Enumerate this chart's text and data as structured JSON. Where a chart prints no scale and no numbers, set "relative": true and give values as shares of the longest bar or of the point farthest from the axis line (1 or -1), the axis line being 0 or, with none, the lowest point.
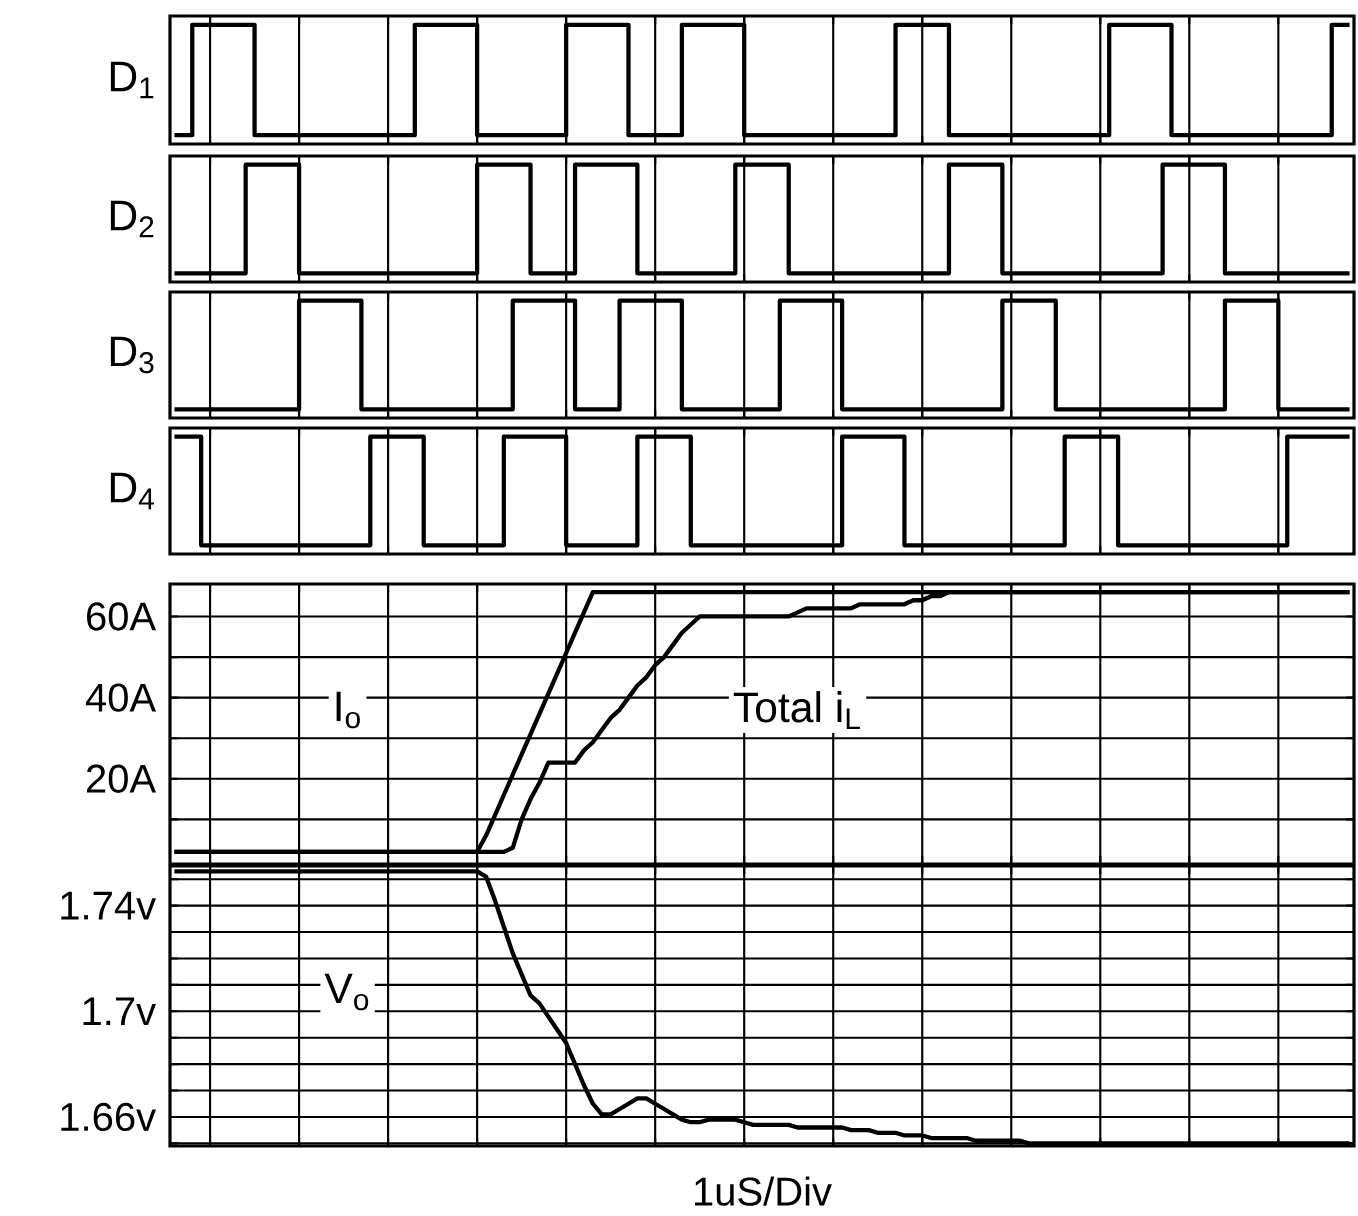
{
  "chart_data": [
    {
      "type": "step",
      "ylabel": "D$_{1}$",
      "relative": true,
      "grid": "x",
      "tick_labels": false,
      "marker": "none",
      "line_style": "solid",
      "categories": [
        null,
        null,
        null,
        null,
        null,
        null,
        null,
        null,
        null,
        null,
        null,
        null,
        null,
        null,
        null,
        null,
        null,
        null,
        null,
        null,
        null,
        null,
        null,
        null,
        null,
        null,
        null,
        null,
        null,
        null,
        null,
        null,
        null,
        null,
        null,
        null,
        null,
        null,
        null,
        null,
        null,
        null,
        null,
        null,
        null,
        null,
        null,
        null,
        null,
        null,
        null,
        null,
        null,
        null,
        null,
        null,
        null,
        null,
        null,
        null,
        null,
        null,
        null,
        null,
        null,
        null,
        null,
        null,
        null,
        null,
        null,
        null,
        null,
        null,
        null,
        null,
        null,
        null,
        null,
        null,
        null,
        null,
        null,
        null,
        null,
        null,
        null,
        null,
        null,
        null,
        null,
        null,
        null,
        null,
        null,
        null,
        null,
        null,
        null,
        null,
        null,
        null,
        null,
        null,
        null,
        null,
        null,
        null,
        null,
        null,
        null,
        null,
        null,
        null,
        null,
        null,
        null,
        null,
        null,
        null,
        null,
        null,
        null,
        null,
        null,
        null,
        null,
        null,
        null,
        null,
        null,
        null,
        null
      ],
      "series": [
        {
          "color": "#000000",
          "values": [
            0,
            0,
            1,
            1,
            1,
            1,
            1,
            1,
            1,
            0,
            0,
            0,
            0,
            0,
            0,
            0,
            0,
            0,
            0,
            0,
            0,
            0,
            0,
            0,
            0,
            0,
            0,
            1,
            1,
            1,
            1,
            1,
            1,
            1,
            0,
            0,
            0,
            0,
            0,
            0,
            0,
            0,
            0,
            0,
            1,
            1,
            1,
            1,
            1,
            1,
            1,
            0,
            0,
            0,
            0,
            0,
            0,
            1,
            1,
            1,
            1,
            1,
            1,
            1,
            0,
            0,
            0,
            0,
            0,
            0,
            0,
            0,
            0,
            0,
            0,
            0,
            0,
            0,
            0,
            0,
            0,
            1,
            1,
            1,
            1,
            1,
            1,
            0,
            0,
            0,
            0,
            0,
            0,
            0,
            0,
            0,
            0,
            0,
            0,
            0,
            0,
            0,
            0,
            0,
            0,
            1,
            1,
            1,
            1,
            1,
            1,
            1,
            0,
            0,
            0,
            0,
            0,
            0,
            0,
            0,
            0,
            0,
            0,
            0,
            0,
            0,
            0,
            0,
            0,
            0,
            1,
            1,
            1
          ]
        }
      ]
    },
    {
      "type": "step",
      "ylabel": "D$_{2}$",
      "relative": true,
      "grid": "x",
      "tick_labels": false,
      "marker": "none",
      "line_style": "solid",
      "categories": [
        null,
        null,
        null,
        null,
        null,
        null,
        null,
        null,
        null,
        null,
        null,
        null,
        null,
        null,
        null,
        null,
        null,
        null,
        null,
        null,
        null,
        null,
        null,
        null,
        null,
        null,
        null,
        null,
        null,
        null,
        null,
        null,
        null,
        null,
        null,
        null,
        null,
        null,
        null,
        null,
        null,
        null,
        null,
        null,
        null,
        null,
        null,
        null,
        null,
        null,
        null,
        null,
        null,
        null,
        null,
        null,
        null,
        null,
        null,
        null,
        null,
        null,
        null,
        null,
        null,
        null,
        null,
        null,
        null,
        null,
        null,
        null,
        null,
        null,
        null,
        null,
        null,
        null,
        null,
        null,
        null,
        null,
        null,
        null,
        null,
        null,
        null,
        null,
        null,
        null,
        null,
        null,
        null,
        null,
        null,
        null,
        null,
        null,
        null,
        null,
        null,
        null,
        null,
        null,
        null,
        null,
        null,
        null,
        null,
        null,
        null,
        null,
        null,
        null,
        null,
        null,
        null,
        null,
        null,
        null,
        null,
        null,
        null,
        null,
        null,
        null,
        null,
        null,
        null,
        null,
        null,
        null,
        null
      ],
      "series": [
        {
          "color": "#000000",
          "values": [
            0,
            0,
            0,
            0,
            0,
            0,
            0,
            0,
            1,
            1,
            1,
            1,
            1,
            1,
            0,
            0,
            0,
            0,
            0,
            0,
            0,
            0,
            0,
            0,
            0,
            0,
            0,
            0,
            0,
            0,
            0,
            0,
            0,
            0,
            1,
            1,
            1,
            1,
            1,
            1,
            0,
            0,
            0,
            0,
            0,
            1,
            1,
            1,
            1,
            1,
            1,
            1,
            0,
            0,
            0,
            0,
            0,
            0,
            0,
            0,
            0,
            0,
            0,
            1,
            1,
            1,
            1,
            1,
            1,
            0,
            0,
            0,
            0,
            0,
            0,
            0,
            0,
            0,
            0,
            0,
            0,
            0,
            0,
            0,
            0,
            0,
            0,
            1,
            1,
            1,
            1,
            1,
            1,
            0,
            0,
            0,
            0,
            0,
            0,
            0,
            0,
            0,
            0,
            0,
            0,
            0,
            0,
            0,
            0,
            0,
            0,
            1,
            1,
            1,
            1,
            1,
            1,
            1,
            0,
            0,
            0,
            0,
            0,
            0,
            0,
            0,
            0,
            0,
            0,
            0,
            0,
            0,
            0
          ]
        }
      ]
    },
    {
      "type": "step",
      "ylabel": "D$_{3}$",
      "relative": true,
      "grid": "x",
      "tick_labels": false,
      "marker": "none",
      "line_style": "solid",
      "categories": [
        null,
        null,
        null,
        null,
        null,
        null,
        null,
        null,
        null,
        null,
        null,
        null,
        null,
        null,
        null,
        null,
        null,
        null,
        null,
        null,
        null,
        null,
        null,
        null,
        null,
        null,
        null,
        null,
        null,
        null,
        null,
        null,
        null,
        null,
        null,
        null,
        null,
        null,
        null,
        null,
        null,
        null,
        null,
        null,
        null,
        null,
        null,
        null,
        null,
        null,
        null,
        null,
        null,
        null,
        null,
        null,
        null,
        null,
        null,
        null,
        null,
        null,
        null,
        null,
        null,
        null,
        null,
        null,
        null,
        null,
        null,
        null,
        null,
        null,
        null,
        null,
        null,
        null,
        null,
        null,
        null,
        null,
        null,
        null,
        null,
        null,
        null,
        null,
        null,
        null,
        null,
        null,
        null,
        null,
        null,
        null,
        null,
        null,
        null,
        null,
        null,
        null,
        null,
        null,
        null,
        null,
        null,
        null,
        null,
        null,
        null,
        null,
        null,
        null,
        null,
        null,
        null,
        null,
        null,
        null,
        null,
        null,
        null,
        null,
        null,
        null,
        null,
        null,
        null,
        null,
        null,
        null,
        null
      ],
      "series": [
        {
          "color": "#000000",
          "values": [
            0,
            0,
            0,
            0,
            0,
            0,
            0,
            0,
            0,
            0,
            0,
            0,
            0,
            0,
            1,
            1,
            1,
            1,
            1,
            1,
            1,
            0,
            0,
            0,
            0,
            0,
            0,
            0,
            0,
            0,
            0,
            0,
            0,
            0,
            0,
            0,
            0,
            0,
            1,
            1,
            1,
            1,
            1,
            1,
            1,
            0,
            0,
            0,
            0,
            0,
            1,
            1,
            1,
            1,
            1,
            1,
            1,
            0,
            0,
            0,
            0,
            0,
            0,
            0,
            0,
            0,
            0,
            0,
            1,
            1,
            1,
            1,
            1,
            1,
            1,
            0,
            0,
            0,
            0,
            0,
            0,
            0,
            0,
            0,
            0,
            0,
            0,
            0,
            0,
            0,
            0,
            0,
            0,
            1,
            1,
            1,
            1,
            1,
            1,
            0,
            0,
            0,
            0,
            0,
            0,
            0,
            0,
            0,
            0,
            0,
            0,
            0,
            0,
            0,
            0,
            0,
            0,
            0,
            1,
            1,
            1,
            1,
            1,
            1,
            0,
            0,
            0,
            0,
            0,
            0,
            0,
            0,
            0
          ]
        }
      ]
    },
    {
      "type": "step",
      "ylabel": "D$_{4}$",
      "relative": true,
      "grid": "x",
      "tick_labels": false,
      "marker": "none",
      "line_style": "solid",
      "categories": [
        null,
        null,
        null,
        null,
        null,
        null,
        null,
        null,
        null,
        null,
        null,
        null,
        null,
        null,
        null,
        null,
        null,
        null,
        null,
        null,
        null,
        null,
        null,
        null,
        null,
        null,
        null,
        null,
        null,
        null,
        null,
        null,
        null,
        null,
        null,
        null,
        null,
        null,
        null,
        null,
        null,
        null,
        null,
        null,
        null,
        null,
        null,
        null,
        null,
        null,
        null,
        null,
        null,
        null,
        null,
        null,
        null,
        null,
        null,
        null,
        null,
        null,
        null,
        null,
        null,
        null,
        null,
        null,
        null,
        null,
        null,
        null,
        null,
        null,
        null,
        null,
        null,
        null,
        null,
        null,
        null,
        null,
        null,
        null,
        null,
        null,
        null,
        null,
        null,
        null,
        null,
        null,
        null,
        null,
        null,
        null,
        null,
        null,
        null,
        null,
        null,
        null,
        null,
        null,
        null,
        null,
        null,
        null,
        null,
        null,
        null,
        null,
        null,
        null,
        null,
        null,
        null,
        null,
        null,
        null,
        null,
        null,
        null,
        null,
        null,
        null,
        null,
        null,
        null,
        null,
        null,
        null,
        null
      ],
      "series": [
        {
          "color": "#000000",
          "values": [
            1,
            1,
            1,
            0,
            0,
            0,
            0,
            0,
            0,
            0,
            0,
            0,
            0,
            0,
            0,
            0,
            0,
            0,
            0,
            0,
            0,
            0,
            1,
            1,
            1,
            1,
            1,
            1,
            0,
            0,
            0,
            0,
            0,
            0,
            0,
            0,
            0,
            1,
            1,
            1,
            1,
            1,
            1,
            1,
            0,
            0,
            0,
            0,
            0,
            0,
            0,
            0,
            1,
            1,
            1,
            1,
            1,
            1,
            0,
            0,
            0,
            0,
            0,
            0,
            0,
            0,
            0,
            0,
            0,
            0,
            0,
            0,
            0,
            0,
            0,
            1,
            1,
            1,
            1,
            1,
            1,
            1,
            0,
            0,
            0,
            0,
            0,
            0,
            0,
            0,
            0,
            0,
            0,
            0,
            0,
            0,
            0,
            0,
            0,
            0,
            1,
            1,
            1,
            1,
            1,
            1,
            0,
            0,
            0,
            0,
            0,
            0,
            0,
            0,
            0,
            0,
            0,
            0,
            0,
            0,
            0,
            0,
            0,
            0,
            0,
            1,
            1,
            1,
            1,
            1,
            1,
            1,
            1
          ]
        }
      ]
    },
    {
      "type": "line",
      "grid": true,
      "tick_labels": "y",
      "marker": "none",
      "line_style": "solid",
      "ylim": [
        -1,
        68
      ],
      "categories": [
        null,
        null,
        null,
        null,
        null,
        null,
        null,
        null,
        null,
        null,
        null,
        null,
        null,
        null,
        null,
        null,
        null,
        null,
        null,
        null,
        null,
        null,
        null,
        null,
        null,
        null,
        null,
        null,
        null,
        null,
        null,
        null,
        null,
        null,
        null,
        null,
        null,
        null,
        null,
        null,
        null,
        null,
        null,
        null,
        null,
        null,
        null,
        null,
        null,
        null,
        null,
        null,
        null,
        null,
        null,
        null,
        null,
        null,
        null,
        null,
        null,
        null,
        null,
        null,
        null,
        null,
        null,
        null,
        null,
        null,
        null,
        null,
        null,
        null,
        null,
        null,
        null,
        null,
        null,
        null,
        null,
        null,
        null,
        null,
        null,
        null,
        null,
        null,
        null,
        null,
        null,
        null,
        null,
        null,
        null,
        null,
        null,
        null,
        null,
        null,
        null,
        null,
        null,
        null,
        null,
        null,
        null,
        null,
        null,
        null,
        null,
        null,
        null,
        null,
        null,
        null,
        null,
        null,
        null,
        null,
        null,
        null,
        null,
        null,
        null,
        null,
        null,
        null,
        null,
        null,
        null,
        null,
        null
      ],
      "yticks": [
        {
          "value": 10,
          "label": null
        },
        {
          "value": 20,
          "label": "20A"
        },
        {
          "value": 30,
          "label": null
        },
        {
          "value": 40,
          "label": "40A"
        },
        {
          "value": 50,
          "label": null
        },
        {
          "value": 60,
          "label": "60A"
        }
      ],
      "series": [
        {
          "name": "I$_{o}$",
          "color": "#000000",
          "values": [
            2,
            2,
            2,
            2,
            2,
            2,
            2,
            2,
            2,
            2,
            2,
            2,
            2,
            2,
            2,
            2,
            2,
            2,
            2,
            2,
            2,
            2,
            2,
            2,
            2,
            2,
            2,
            2,
            2,
            2,
            2,
            2,
            2,
            2,
            2,
            6,
            11,
            16,
            21,
            26,
            31,
            36,
            41,
            46,
            51,
            56,
            61,
            66,
            66,
            66,
            66,
            66,
            66,
            66,
            66,
            66,
            66,
            66,
            66,
            66,
            66,
            66,
            66,
            66,
            66,
            66,
            66,
            66,
            66,
            66,
            66,
            66,
            66,
            66,
            66,
            66,
            66,
            66,
            66,
            66,
            66,
            66,
            66,
            66,
            66,
            66,
            66,
            66,
            66,
            66,
            66,
            66,
            66,
            66,
            66,
            66,
            66,
            66,
            66,
            66,
            66,
            66,
            66,
            66,
            66,
            66,
            66,
            66,
            66,
            66,
            66,
            66,
            66,
            66,
            66,
            66,
            66,
            66,
            66,
            66,
            66,
            66,
            66,
            66,
            66,
            66,
            66,
            66,
            66,
            66,
            66,
            66,
            66
          ]
        },
        {
          "name": "Total i$_{L}$",
          "color": "#000000",
          "values": [
            2,
            2,
            2,
            2,
            2,
            2,
            2,
            2,
            2,
            2,
            2,
            2,
            2,
            2,
            2,
            2,
            2,
            2,
            2,
            2,
            2,
            2,
            2,
            2,
            2,
            2,
            2,
            2,
            2,
            2,
            2,
            2,
            2,
            2,
            2,
            2,
            2,
            2,
            3,
            10,
            15,
            19,
            24,
            24,
            24,
            24,
            27,
            29,
            32,
            35,
            37,
            40,
            43,
            45,
            48,
            50,
            53,
            56,
            58,
            60,
            60,
            60,
            60,
            60,
            60,
            60,
            60,
            60,
            60,
            60,
            61,
            62,
            62,
            62,
            62,
            62,
            62,
            63,
            63,
            63,
            63,
            63,
            63,
            64,
            64,
            65,
            65,
            66,
            66,
            66,
            66,
            66,
            66,
            66,
            66,
            66,
            66,
            66,
            66,
            66,
            66,
            66,
            66,
            66,
            66,
            66,
            66,
            66,
            66,
            66,
            66,
            66,
            66,
            66,
            66,
            66,
            66,
            66,
            66,
            66,
            66,
            66,
            66,
            66,
            66,
            66,
            66,
            66,
            66,
            66,
            66,
            66,
            66
          ]
        }
      ]
    },
    {
      "type": "line",
      "grid": true,
      "tick_labels": "y",
      "marker": "none",
      "line_style": "solid",
      "xlabel": "1uS/Div",
      "ylim": [
        1.649,
        1.755
      ],
      "categories": [
        null,
        null,
        null,
        null,
        null,
        null,
        null,
        null,
        null,
        null,
        null,
        null,
        null,
        null,
        null,
        null,
        null,
        null,
        null,
        null,
        null,
        null,
        null,
        null,
        null,
        null,
        null,
        null,
        null,
        null,
        null,
        null,
        null,
        null,
        null,
        null,
        null,
        null,
        null,
        null,
        null,
        null,
        null,
        null,
        null,
        null,
        null,
        null,
        null,
        null,
        null,
        null,
        null,
        null,
        null,
        null,
        null,
        null,
        null,
        null,
        null,
        null,
        null,
        null,
        null,
        null,
        null,
        null,
        null,
        null,
        null,
        null,
        null,
        null,
        null,
        null,
        null,
        null,
        null,
        null,
        null,
        null,
        null,
        null,
        null,
        null,
        null,
        null,
        null,
        null,
        null,
        null,
        null,
        null,
        null,
        null,
        null,
        null,
        null,
        null,
        null,
        null,
        null,
        null,
        null,
        null,
        null,
        null,
        null,
        null,
        null,
        null,
        null,
        null,
        null,
        null,
        null,
        null,
        null,
        null,
        null,
        null,
        null,
        null,
        null,
        null,
        null,
        null,
        null,
        null,
        null,
        null,
        null
      ],
      "yticks": [
        {
          "value": 1.65,
          "label": null
        },
        {
          "value": 1.66,
          "label": "1.66v"
        },
        {
          "value": 1.67,
          "label": null
        },
        {
          "value": 1.68,
          "label": null
        },
        {
          "value": 1.69,
          "label": null
        },
        {
          "value": 1.7,
          "label": "1.7v"
        },
        {
          "value": 1.71,
          "label": null
        },
        {
          "value": 1.72,
          "label": null
        },
        {
          "value": 1.73,
          "label": null
        },
        {
          "value": 1.74,
          "label": "1.74v"
        },
        {
          "value": 1.75,
          "label": null
        }
      ],
      "series": [
        {
          "name": "V$_{o}$",
          "color": "#000000",
          "values": [
            1.753,
            1.753,
            1.753,
            1.753,
            1.753,
            1.753,
            1.753,
            1.753,
            1.753,
            1.753,
            1.753,
            1.753,
            1.753,
            1.753,
            1.753,
            1.753,
            1.753,
            1.753,
            1.753,
            1.753,
            1.753,
            1.753,
            1.753,
            1.753,
            1.753,
            1.753,
            1.753,
            1.753,
            1.753,
            1.753,
            1.753,
            1.753,
            1.753,
            1.753,
            1.753,
            1.751,
            1.742,
            1.732,
            1.722,
            1.714,
            1.706,
            1.703,
            1.698,
            1.693,
            1.688,
            1.68,
            1.672,
            1.665,
            1.661,
            1.661,
            1.663,
            1.665,
            1.667,
            1.667,
            1.665,
            1.663,
            1.661,
            1.659,
            1.658,
            1.658,
            1.659,
            1.659,
            1.659,
            1.659,
            1.658,
            1.657,
            1.657,
            1.657,
            1.657,
            1.657,
            1.656,
            1.656,
            1.656,
            1.656,
            1.656,
            1.656,
            1.655,
            1.655,
            1.655,
            1.654,
            1.654,
            1.654,
            1.653,
            1.653,
            1.653,
            1.652,
            1.652,
            1.652,
            1.652,
            1.652,
            1.651,
            1.651,
            1.651,
            1.651,
            1.651,
            1.651,
            1.65,
            1.65,
            1.65,
            1.65,
            1.65,
            1.65,
            1.65,
            1.65,
            1.65,
            1.65,
            1.65,
            1.65,
            1.65,
            1.65,
            1.65,
            1.65,
            1.65,
            1.65,
            1.65,
            1.65,
            1.65,
            1.65,
            1.65,
            1.65,
            1.65,
            1.65,
            1.65,
            1.65,
            1.65,
            1.65,
            1.65,
            1.65,
            1.65,
            1.65,
            1.65,
            1.65,
            1.65
          ]
        }
      ]
    }
  ]
}
